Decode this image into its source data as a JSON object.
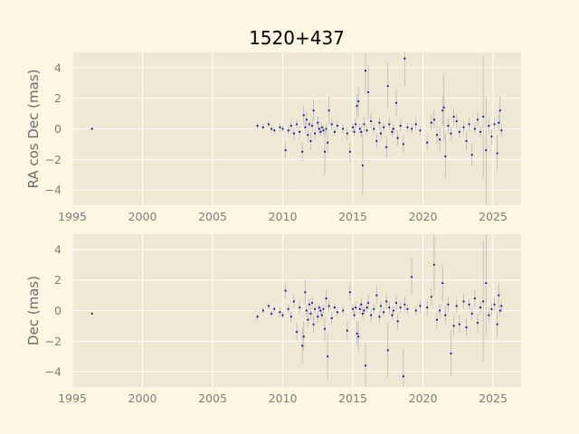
{
  "figure": {
    "title": "1520+437",
    "background": "#fdf6e3",
    "panel_background": "#efe8d5",
    "grid_color": "#ffffff",
    "point_color": "#1b1b8a",
    "errorbar_color": "#b8b8b8"
  },
  "chart_data": [
    {
      "type": "scatter",
      "title": "1520+437",
      "xlabel": "",
      "ylabel": "RA cos Dec (mas)",
      "xlim": [
        1995,
        2027
      ],
      "ylim": [
        -5,
        5
      ],
      "x_ticks": [
        1995,
        2000,
        2005,
        2010,
        2015,
        2020,
        2025
      ],
      "y_ticks": [
        4,
        2,
        0,
        -2,
        -4
      ],
      "grid": true,
      "error_bars": true,
      "series": [
        {
          "points": [
            [
              1996.4,
              0.0,
              0.1
            ],
            [
              2008.2,
              0.2,
              0.2
            ],
            [
              2008.6,
              0.1,
              0.2
            ],
            [
              2009.0,
              0.3,
              0.2
            ],
            [
              2009.2,
              0.0,
              0.2
            ],
            [
              2009.4,
              -0.1,
              0.2
            ],
            [
              2009.8,
              0.1,
              0.3
            ],
            [
              2010.0,
              0.0,
              0.2
            ],
            [
              2010.2,
              -1.4,
              0.5
            ],
            [
              2010.4,
              -0.1,
              0.3
            ],
            [
              2010.6,
              0.2,
              0.4
            ],
            [
              2010.8,
              -0.3,
              0.4
            ],
            [
              2011.0,
              0.3,
              0.3
            ],
            [
              2011.2,
              -0.2,
              0.4
            ],
            [
              2011.4,
              -1.5,
              0.6
            ],
            [
              2011.5,
              0.9,
              0.6
            ],
            [
              2011.6,
              0.1,
              0.4
            ],
            [
              2011.7,
              0.6,
              0.5
            ],
            [
              2011.8,
              -0.4,
              0.5
            ],
            [
              2011.9,
              0.3,
              0.3
            ],
            [
              2012.0,
              -0.8,
              0.6
            ],
            [
              2012.1,
              0.2,
              0.4
            ],
            [
              2012.2,
              1.2,
              0.7
            ],
            [
              2012.3,
              -0.3,
              0.4
            ],
            [
              2012.5,
              0.4,
              0.4
            ],
            [
              2012.6,
              0.0,
              0.3
            ],
            [
              2012.7,
              -0.2,
              0.3
            ],
            [
              2012.8,
              0.1,
              0.3
            ],
            [
              2012.9,
              -0.1,
              0.3
            ],
            [
              2013.0,
              -1.5,
              1.5
            ],
            [
              2013.1,
              0.0,
              0.3
            ],
            [
              2013.2,
              -0.9,
              0.7
            ],
            [
              2013.3,
              1.2,
              0.9
            ],
            [
              2013.5,
              0.3,
              0.4
            ],
            [
              2013.7,
              -0.2,
              0.3
            ],
            [
              2013.9,
              0.2,
              0.3
            ],
            [
              2014.3,
              0.0,
              0.3
            ],
            [
              2014.6,
              -0.3,
              0.4
            ],
            [
              2014.8,
              -1.5,
              0.6
            ],
            [
              2015.0,
              0.1,
              0.3
            ],
            [
              2015.1,
              -0.2,
              0.3
            ],
            [
              2015.2,
              0.3,
              0.4
            ],
            [
              2015.3,
              1.5,
              0.8
            ],
            [
              2015.4,
              1.8,
              1.0
            ],
            [
              2015.5,
              0.0,
              0.3
            ],
            [
              2015.6,
              -0.2,
              0.4
            ],
            [
              2015.7,
              -2.4,
              2.0
            ],
            [
              2015.8,
              0.3,
              0.5
            ],
            [
              2015.9,
              3.8,
              1.5
            ],
            [
              2016.0,
              -0.1,
              0.3
            ],
            [
              2016.1,
              2.4,
              1.8
            ],
            [
              2016.3,
              0.5,
              0.5
            ],
            [
              2016.5,
              0.0,
              0.3
            ],
            [
              2016.7,
              -0.8,
              0.5
            ],
            [
              2016.9,
              0.4,
              0.4
            ],
            [
              2017.0,
              -0.3,
              0.4
            ],
            [
              2017.2,
              0.1,
              0.3
            ],
            [
              2017.4,
              -1.2,
              0.7
            ],
            [
              2017.5,
              2.8,
              1.5
            ],
            [
              2017.6,
              0.3,
              0.4
            ],
            [
              2017.8,
              -0.2,
              0.3
            ],
            [
              2017.9,
              0.0,
              0.3
            ],
            [
              2018.1,
              1.7,
              0.9
            ],
            [
              2018.2,
              -0.6,
              0.5
            ],
            [
              2018.4,
              0.2,
              0.4
            ],
            [
              2018.6,
              -1.0,
              0.6
            ],
            [
              2018.7,
              4.6,
              1.8
            ],
            [
              2018.9,
              0.1,
              0.3
            ],
            [
              2019.2,
              0.0,
              0.3
            ],
            [
              2019.5,
              0.3,
              0.4
            ],
            [
              2019.8,
              -0.1,
              0.3
            ],
            [
              2020.3,
              -0.9,
              0.5
            ],
            [
              2020.6,
              0.4,
              0.5
            ],
            [
              2020.8,
              0.6,
              0.6
            ],
            [
              2021.0,
              -0.4,
              0.6
            ],
            [
              2021.2,
              -0.7,
              0.8
            ],
            [
              2021.4,
              1.2,
              1.0
            ],
            [
              2021.5,
              1.4,
              2.2
            ],
            [
              2021.6,
              -1.8,
              1.5
            ],
            [
              2021.8,
              0.2,
              0.5
            ],
            [
              2022.0,
              -0.3,
              0.4
            ],
            [
              2022.2,
              0.8,
              0.6
            ],
            [
              2022.4,
              0.5,
              0.5
            ],
            [
              2022.6,
              -0.2,
              0.4
            ],
            [
              2022.9,
              0.1,
              0.4
            ],
            [
              2023.1,
              -0.8,
              0.6
            ],
            [
              2023.3,
              0.3,
              0.4
            ],
            [
              2023.5,
              -1.7,
              0.8
            ],
            [
              2023.7,
              0.0,
              0.4
            ],
            [
              2023.9,
              0.6,
              0.5
            ],
            [
              2024.1,
              -0.2,
              0.4
            ],
            [
              2024.3,
              0.8,
              4.0
            ],
            [
              2024.5,
              -1.4,
              3.5
            ],
            [
              2024.7,
              0.2,
              0.5
            ],
            [
              2024.9,
              -0.5,
              0.5
            ],
            [
              2025.1,
              0.3,
              0.4
            ],
            [
              2025.3,
              -1.6,
              1.2
            ],
            [
              2025.4,
              0.4,
              0.5
            ],
            [
              2025.5,
              1.2,
              0.9
            ],
            [
              2025.6,
              -0.1,
              0.4
            ]
          ]
        }
      ]
    },
    {
      "type": "scatter",
      "xlabel": "",
      "ylabel": "Dec (mas)",
      "xlim": [
        1995,
        2027
      ],
      "ylim": [
        -5,
        5
      ],
      "x_ticks": [
        1995,
        2000,
        2005,
        2010,
        2015,
        2020,
        2025
      ],
      "y_ticks": [
        4,
        2,
        0,
        -2,
        -4
      ],
      "grid": true,
      "error_bars": true,
      "series": [
        {
          "points": [
            [
              1996.4,
              -0.2,
              0.1
            ],
            [
              2008.2,
              -0.4,
              0.2
            ],
            [
              2008.6,
              0.0,
              0.2
            ],
            [
              2009.0,
              0.3,
              0.2
            ],
            [
              2009.2,
              -0.2,
              0.2
            ],
            [
              2009.4,
              0.1,
              0.2
            ],
            [
              2009.8,
              -0.1,
              0.3
            ],
            [
              2010.0,
              -0.3,
              0.2
            ],
            [
              2010.2,
              1.3,
              0.5
            ],
            [
              2010.4,
              0.1,
              0.3
            ],
            [
              2010.6,
              -0.4,
              0.4
            ],
            [
              2010.8,
              0.6,
              0.4
            ],
            [
              2011.0,
              -1.4,
              0.6
            ],
            [
              2011.2,
              0.2,
              0.4
            ],
            [
              2011.4,
              -2.3,
              1.2
            ],
            [
              2011.5,
              -1.7,
              1.0
            ],
            [
              2011.6,
              1.2,
              0.8
            ],
            [
              2011.7,
              0.0,
              0.4
            ],
            [
              2011.8,
              -0.6,
              0.5
            ],
            [
              2011.9,
              0.4,
              0.4
            ],
            [
              2012.0,
              -0.2,
              0.4
            ],
            [
              2012.1,
              0.5,
              0.4
            ],
            [
              2012.2,
              -0.9,
              0.6
            ],
            [
              2012.3,
              0.1,
              0.3
            ],
            [
              2012.5,
              -0.4,
              0.4
            ],
            [
              2012.6,
              0.2,
              0.3
            ],
            [
              2012.7,
              0.0,
              0.3
            ],
            [
              2012.8,
              -0.3,
              0.3
            ],
            [
              2012.9,
              0.1,
              0.3
            ],
            [
              2013.0,
              -1.2,
              0.8
            ],
            [
              2013.1,
              0.8,
              0.6
            ],
            [
              2013.2,
              -3.0,
              1.5
            ],
            [
              2013.3,
              0.3,
              0.4
            ],
            [
              2013.5,
              -0.5,
              0.4
            ],
            [
              2013.7,
              0.2,
              0.3
            ],
            [
              2013.9,
              -0.1,
              0.3
            ],
            [
              2014.3,
              0.0,
              0.3
            ],
            [
              2014.6,
              -1.3,
              0.6
            ],
            [
              2014.8,
              1.2,
              0.6
            ],
            [
              2015.0,
              0.1,
              0.3
            ],
            [
              2015.1,
              -0.3,
              0.3
            ],
            [
              2015.2,
              0.2,
              0.4
            ],
            [
              2015.3,
              -1.5,
              0.8
            ],
            [
              2015.4,
              -1.7,
              1.0
            ],
            [
              2015.5,
              0.1,
              0.3
            ],
            [
              2015.6,
              0.4,
              0.4
            ],
            [
              2015.7,
              -0.2,
              0.4
            ],
            [
              2015.8,
              0.0,
              0.3
            ],
            [
              2015.9,
              -3.6,
              1.5
            ],
            [
              2016.0,
              0.2,
              0.3
            ],
            [
              2016.1,
              0.5,
              0.5
            ],
            [
              2016.3,
              -0.3,
              0.4
            ],
            [
              2016.5,
              0.1,
              0.3
            ],
            [
              2016.7,
              1.0,
              0.6
            ],
            [
              2016.9,
              -0.4,
              0.4
            ],
            [
              2017.0,
              0.3,
              0.4
            ],
            [
              2017.2,
              -0.1,
              0.3
            ],
            [
              2017.4,
              0.6,
              0.5
            ],
            [
              2017.5,
              -2.6,
              1.8
            ],
            [
              2017.6,
              0.2,
              0.4
            ],
            [
              2017.8,
              -0.3,
              0.3
            ],
            [
              2017.9,
              0.0,
              0.3
            ],
            [
              2018.1,
              0.5,
              0.5
            ],
            [
              2018.2,
              -0.7,
              0.5
            ],
            [
              2018.4,
              0.2,
              0.4
            ],
            [
              2018.6,
              -4.3,
              1.8
            ],
            [
              2018.7,
              0.4,
              0.5
            ],
            [
              2018.9,
              0.1,
              0.3
            ],
            [
              2019.2,
              2.2,
              1.2
            ],
            [
              2019.5,
              0.0,
              0.3
            ],
            [
              2019.8,
              0.3,
              0.4
            ],
            [
              2020.3,
              0.2,
              0.5
            ],
            [
              2020.6,
              0.9,
              0.6
            ],
            [
              2020.8,
              3.0,
              2.0
            ],
            [
              2021.0,
              -0.6,
              0.6
            ],
            [
              2021.2,
              0.0,
              0.5
            ],
            [
              2021.4,
              1.8,
              1.2
            ],
            [
              2021.6,
              -0.3,
              0.6
            ],
            [
              2021.8,
              0.4,
              0.5
            ],
            [
              2022.0,
              -2.8,
              1.5
            ],
            [
              2022.2,
              -1.0,
              0.6
            ],
            [
              2022.4,
              0.3,
              0.4
            ],
            [
              2022.6,
              -0.9,
              0.6
            ],
            [
              2022.9,
              0.6,
              0.5
            ],
            [
              2023.1,
              -1.1,
              0.6
            ],
            [
              2023.3,
              0.4,
              0.4
            ],
            [
              2023.5,
              -0.2,
              0.4
            ],
            [
              2023.7,
              0.8,
              0.6
            ],
            [
              2023.9,
              -0.8,
              0.6
            ],
            [
              2024.1,
              0.2,
              0.4
            ],
            [
              2024.3,
              0.6,
              4.0
            ],
            [
              2024.5,
              1.8,
              3.5
            ],
            [
              2024.7,
              -0.3,
              0.5
            ],
            [
              2024.9,
              0.1,
              0.4
            ],
            [
              2025.1,
              0.4,
              0.4
            ],
            [
              2025.3,
              -0.9,
              0.8
            ],
            [
              2025.4,
              1.0,
              0.8
            ],
            [
              2025.5,
              0.0,
              0.4
            ],
            [
              2025.6,
              0.3,
              0.4
            ]
          ]
        }
      ]
    }
  ]
}
